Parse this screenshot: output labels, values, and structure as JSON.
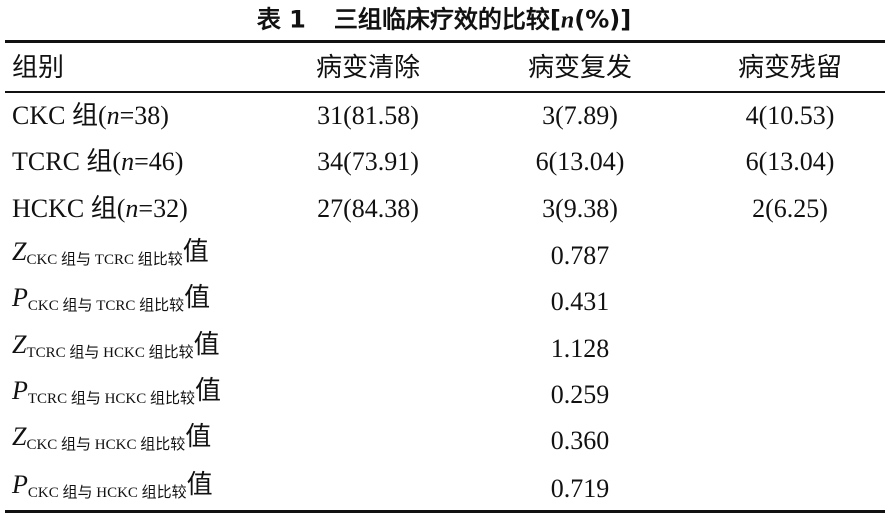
{
  "table": {
    "title": {
      "label": "表 1",
      "text": "三组临床疗效的比较[",
      "var": "n",
      "suffix": "(%)]"
    },
    "header": [
      "组别",
      "病变清除",
      "病变复发",
      "病变残留"
    ],
    "rows": [
      {
        "group": [
          "CKC 组(",
          "n",
          "=38)"
        ],
        "cells": [
          "31(81.58)",
          "3(7.89)",
          "4(10.53)"
        ]
      },
      {
        "group": [
          "TCRC 组(",
          "n",
          "=46)"
        ],
        "cells": [
          "34(73.91)",
          "6(13.04)",
          "6(13.04)"
        ]
      },
      {
        "group": [
          "HCKC 组(",
          "n",
          "=32)"
        ],
        "cells": [
          "27(84.38)",
          "3(9.38)",
          "2(6.25)"
        ]
      }
    ],
    "stats": [
      {
        "symbol": "Z",
        "subscript": "CKC 组与 TCRC 组比较",
        "suffix": "值",
        "value": "0.787"
      },
      {
        "symbol": "P",
        "subscript": "CKC 组与 TCRC 组比较",
        "suffix": "值",
        "value": "0.431"
      },
      {
        "symbol": "Z",
        "subscript": "TCRC 组与 HCKC 组比较",
        "suffix": "值",
        "value": "1.128"
      },
      {
        "symbol": "P",
        "subscript": "TCRC 组与 HCKC 组比较",
        "suffix": "值",
        "value": "0.259"
      },
      {
        "symbol": "Z",
        "subscript": "CKC 组与 HCKC 组比较",
        "suffix": "值",
        "value": "0.360"
      },
      {
        "symbol": "P",
        "subscript": "CKC 组与 HCKC 组比较",
        "suffix": "值",
        "value": "0.719"
      }
    ]
  }
}
